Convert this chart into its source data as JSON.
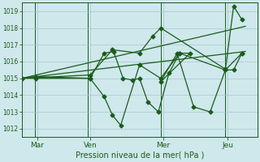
{
  "bg_color": "#cfe8ec",
  "grid_color": "#a8c8d0",
  "line_color": "#1a5c1a",
  "xlabel": "Pression niveau de la mer( hPa )",
  "ylim": [
    1011.5,
    1019.5
  ],
  "yticks": [
    1012,
    1013,
    1014,
    1015,
    1016,
    1017,
    1018,
    1019
  ],
  "xlim": [
    0,
    10.0
  ],
  "xtick_positions": [
    0.65,
    2.9,
    6.0,
    8.75
  ],
  "xtick_labels": [
    "Mar",
    "Ven",
    "Mer",
    "Jeu"
  ],
  "vlines": [
    0.55,
    2.8,
    5.9,
    8.65
  ],
  "series_main": {
    "x": [
      0.0,
      0.6,
      2.9,
      3.5,
      3.9,
      4.3,
      4.7,
      5.0,
      5.35,
      5.8,
      6.25,
      6.7,
      7.15,
      5.9,
      6.6,
      7.3,
      8.0,
      8.65,
      9.0,
      9.35
    ],
    "y": [
      1015.0,
      1015.1,
      1015.0,
      1016.5,
      1016.6,
      1015.0,
      1014.9,
      1015.0,
      1013.6,
      1013.0,
      1015.3,
      1016.5,
      1016.5,
      1014.8,
      1016.5,
      1013.3,
      1013.0,
      1015.5,
      1015.5,
      1016.5
    ]
  },
  "series_zigzag": {
    "x": [
      0.0,
      0.6,
      2.9,
      3.5,
      3.85,
      4.2,
      5.0,
      5.9,
      6.7,
      8.65,
      9.35
    ],
    "y": [
      1015.0,
      1015.0,
      1015.0,
      1013.9,
      1012.8,
      1012.2,
      1015.8,
      1015.0,
      1016.5,
      1015.5,
      1016.5
    ]
  },
  "series_upper": {
    "x": [
      0.0,
      2.9,
      3.85,
      5.0,
      5.55,
      5.9,
      8.65,
      9.0,
      9.35
    ],
    "y": [
      1015.0,
      1015.2,
      1016.7,
      1016.5,
      1017.5,
      1018.0,
      1015.55,
      1019.3,
      1018.5
    ]
  },
  "trend_high": {
    "x": [
      0.0,
      9.5
    ],
    "y": [
      1015.0,
      1018.1
    ]
  },
  "trend_mid": {
    "x": [
      0.0,
      9.5
    ],
    "y": [
      1015.0,
      1016.6
    ]
  }
}
